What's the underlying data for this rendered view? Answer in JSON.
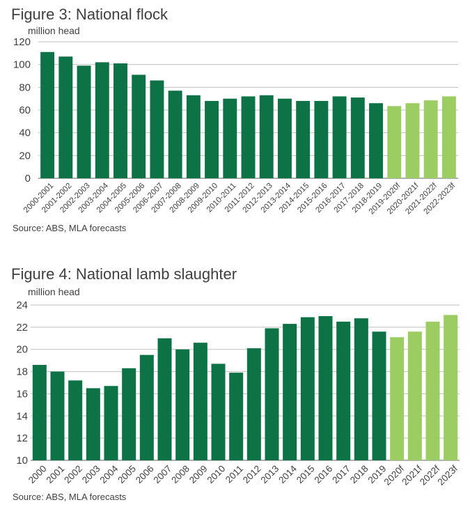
{
  "figures": [
    {
      "title": "Figure 3: National flock",
      "unit": "million head",
      "source": "Source: ABS, MLA forecasts"
    },
    {
      "title": "Figure 4: National lamb slaughter",
      "unit": "million head",
      "source": "Source: ABS, MLA forecasts"
    }
  ],
  "colors": {
    "actual": "#0d7347",
    "forecast": "#9ccd62",
    "grid": "#bfbfbf"
  },
  "chart_data": [
    {
      "type": "bar",
      "title": "Figure 3: National flock",
      "ylabel": "million head",
      "ylim": [
        0,
        120
      ],
      "yticks": [
        0,
        20,
        40,
        60,
        80,
        100,
        120
      ],
      "grid": true,
      "categories": [
        "2000-2001",
        "2001-2002",
        "2002-2003",
        "2003-2004",
        "2004-2005",
        "2005-2006",
        "2006-2007",
        "2007-2008",
        "2008-2009",
        "2009-2010",
        "2010-2011",
        "2011-2012",
        "2012-2013",
        "2013-2014",
        "2014-2015",
        "2015-2016",
        "2016-2017",
        "2017-2018",
        "2018-2019",
        "2019-2020f",
        "2020-2021f",
        "2021-2022f",
        "2022-2023f"
      ],
      "values": [
        111,
        107,
        99,
        102,
        101,
        91,
        86,
        77,
        73,
        68,
        70,
        72,
        73,
        70,
        68,
        68,
        72,
        71,
        66,
        63.5,
        66,
        68.5,
        72
      ],
      "forecast": [
        false,
        false,
        false,
        false,
        false,
        false,
        false,
        false,
        false,
        false,
        false,
        false,
        false,
        false,
        false,
        false,
        false,
        false,
        false,
        true,
        true,
        true,
        true
      ]
    },
    {
      "type": "bar",
      "title": "Figure 4: National lamb slaughter",
      "ylabel": "million head",
      "ylim": [
        10,
        24
      ],
      "yticks": [
        10,
        12,
        14,
        16,
        18,
        20,
        22,
        24
      ],
      "grid": true,
      "categories": [
        "2000",
        "2001",
        "2002",
        "2003",
        "2004",
        "2005",
        "2006",
        "2007",
        "2008",
        "2009",
        "2010",
        "2011",
        "2012",
        "2013",
        "2014",
        "2015",
        "2016",
        "2017",
        "2018",
        "2019",
        "2020f",
        "2021f",
        "2022f",
        "2023f"
      ],
      "values": [
        18.6,
        18.0,
        17.2,
        16.5,
        16.7,
        18.3,
        19.5,
        21.0,
        20.0,
        20.6,
        18.7,
        17.9,
        20.1,
        21.9,
        22.3,
        22.9,
        23.0,
        22.5,
        22.8,
        21.6,
        21.1,
        21.6,
        22.5,
        23.1
      ],
      "forecast": [
        false,
        false,
        false,
        false,
        false,
        false,
        false,
        false,
        false,
        false,
        false,
        false,
        false,
        false,
        false,
        false,
        false,
        false,
        false,
        false,
        true,
        true,
        true,
        true
      ]
    }
  ]
}
